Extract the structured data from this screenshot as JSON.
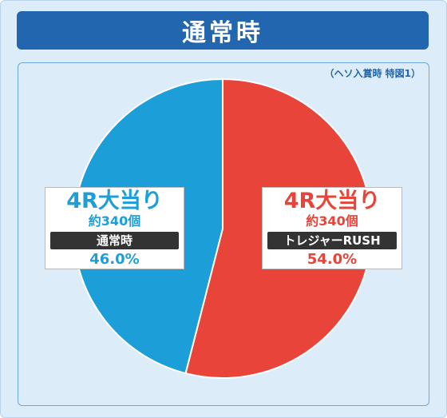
{
  "header": {
    "title": "通常時"
  },
  "note": "（ヘソ入賞時 特図1）",
  "colors": {
    "blue": "#1c9fd8",
    "red": "#e8443a"
  },
  "chart_data": {
    "type": "pie",
    "title": "通常時",
    "slices": [
      {
        "name": "4R大当り",
        "sub": "約340個",
        "tag": "トレジャーRUSH",
        "value": 54.0,
        "label": "54.0%",
        "color": "#e8443a"
      },
      {
        "name": "4R大当り",
        "sub": "約340個",
        "tag": "通常時",
        "value": 46.0,
        "label": "46.0%",
        "color": "#1c9fd8"
      }
    ]
  }
}
